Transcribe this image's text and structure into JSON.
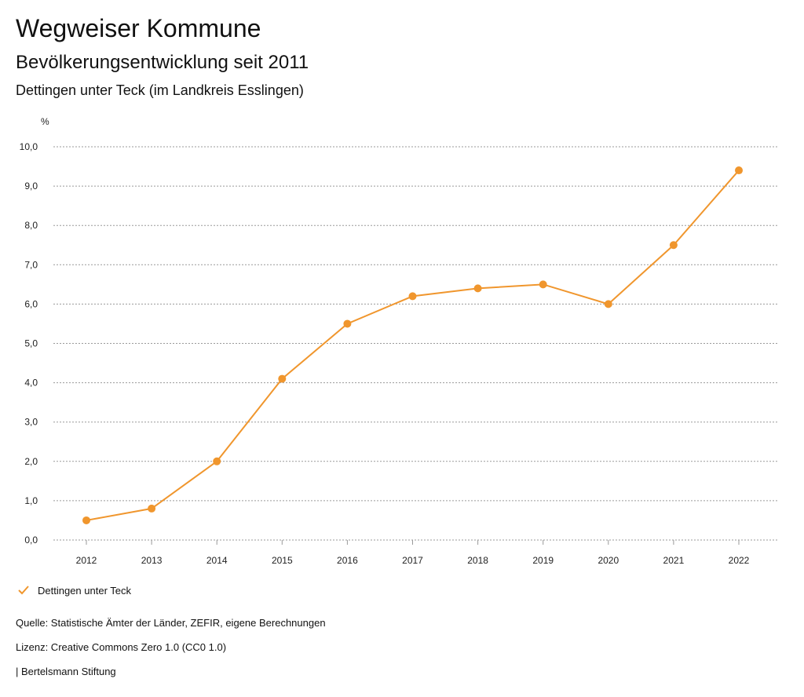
{
  "header": {
    "title": "Wegweiser Kommune",
    "subtitle": "Bevölkerungsentwicklung seit 2011",
    "region": "Dettingen unter Teck (im Landkreis Esslingen)"
  },
  "chart_data": {
    "type": "line",
    "unit_label": "%",
    "x": [
      "2012",
      "2013",
      "2014",
      "2015",
      "2016",
      "2017",
      "2018",
      "2019",
      "2020",
      "2021",
      "2022"
    ],
    "series": [
      {
        "name": "Dettingen unter Teck",
        "values": [
          0.5,
          0.8,
          2.0,
          4.1,
          5.5,
          6.2,
          6.4,
          6.5,
          6.0,
          7.5,
          9.4
        ],
        "color": "#f0962d"
      }
    ],
    "ylim": [
      0,
      10
    ],
    "yticks": [
      "0,0",
      "1,0",
      "2,0",
      "3,0",
      "4,0",
      "5,0",
      "6,0",
      "7,0",
      "8,0",
      "9,0",
      "10,0"
    ],
    "grid": true,
    "legend_position": "bottom-left"
  },
  "legend": {
    "label": "Dettingen unter Teck",
    "icon": "check-icon"
  },
  "footer": {
    "source": "Quelle: Statistische Ämter der Länder, ZEFIR, eigene Berechnungen",
    "license": "Lizenz: Creative Commons Zero 1.0 (CC0 1.0)",
    "credit": "| Bertelsmann Stiftung"
  }
}
